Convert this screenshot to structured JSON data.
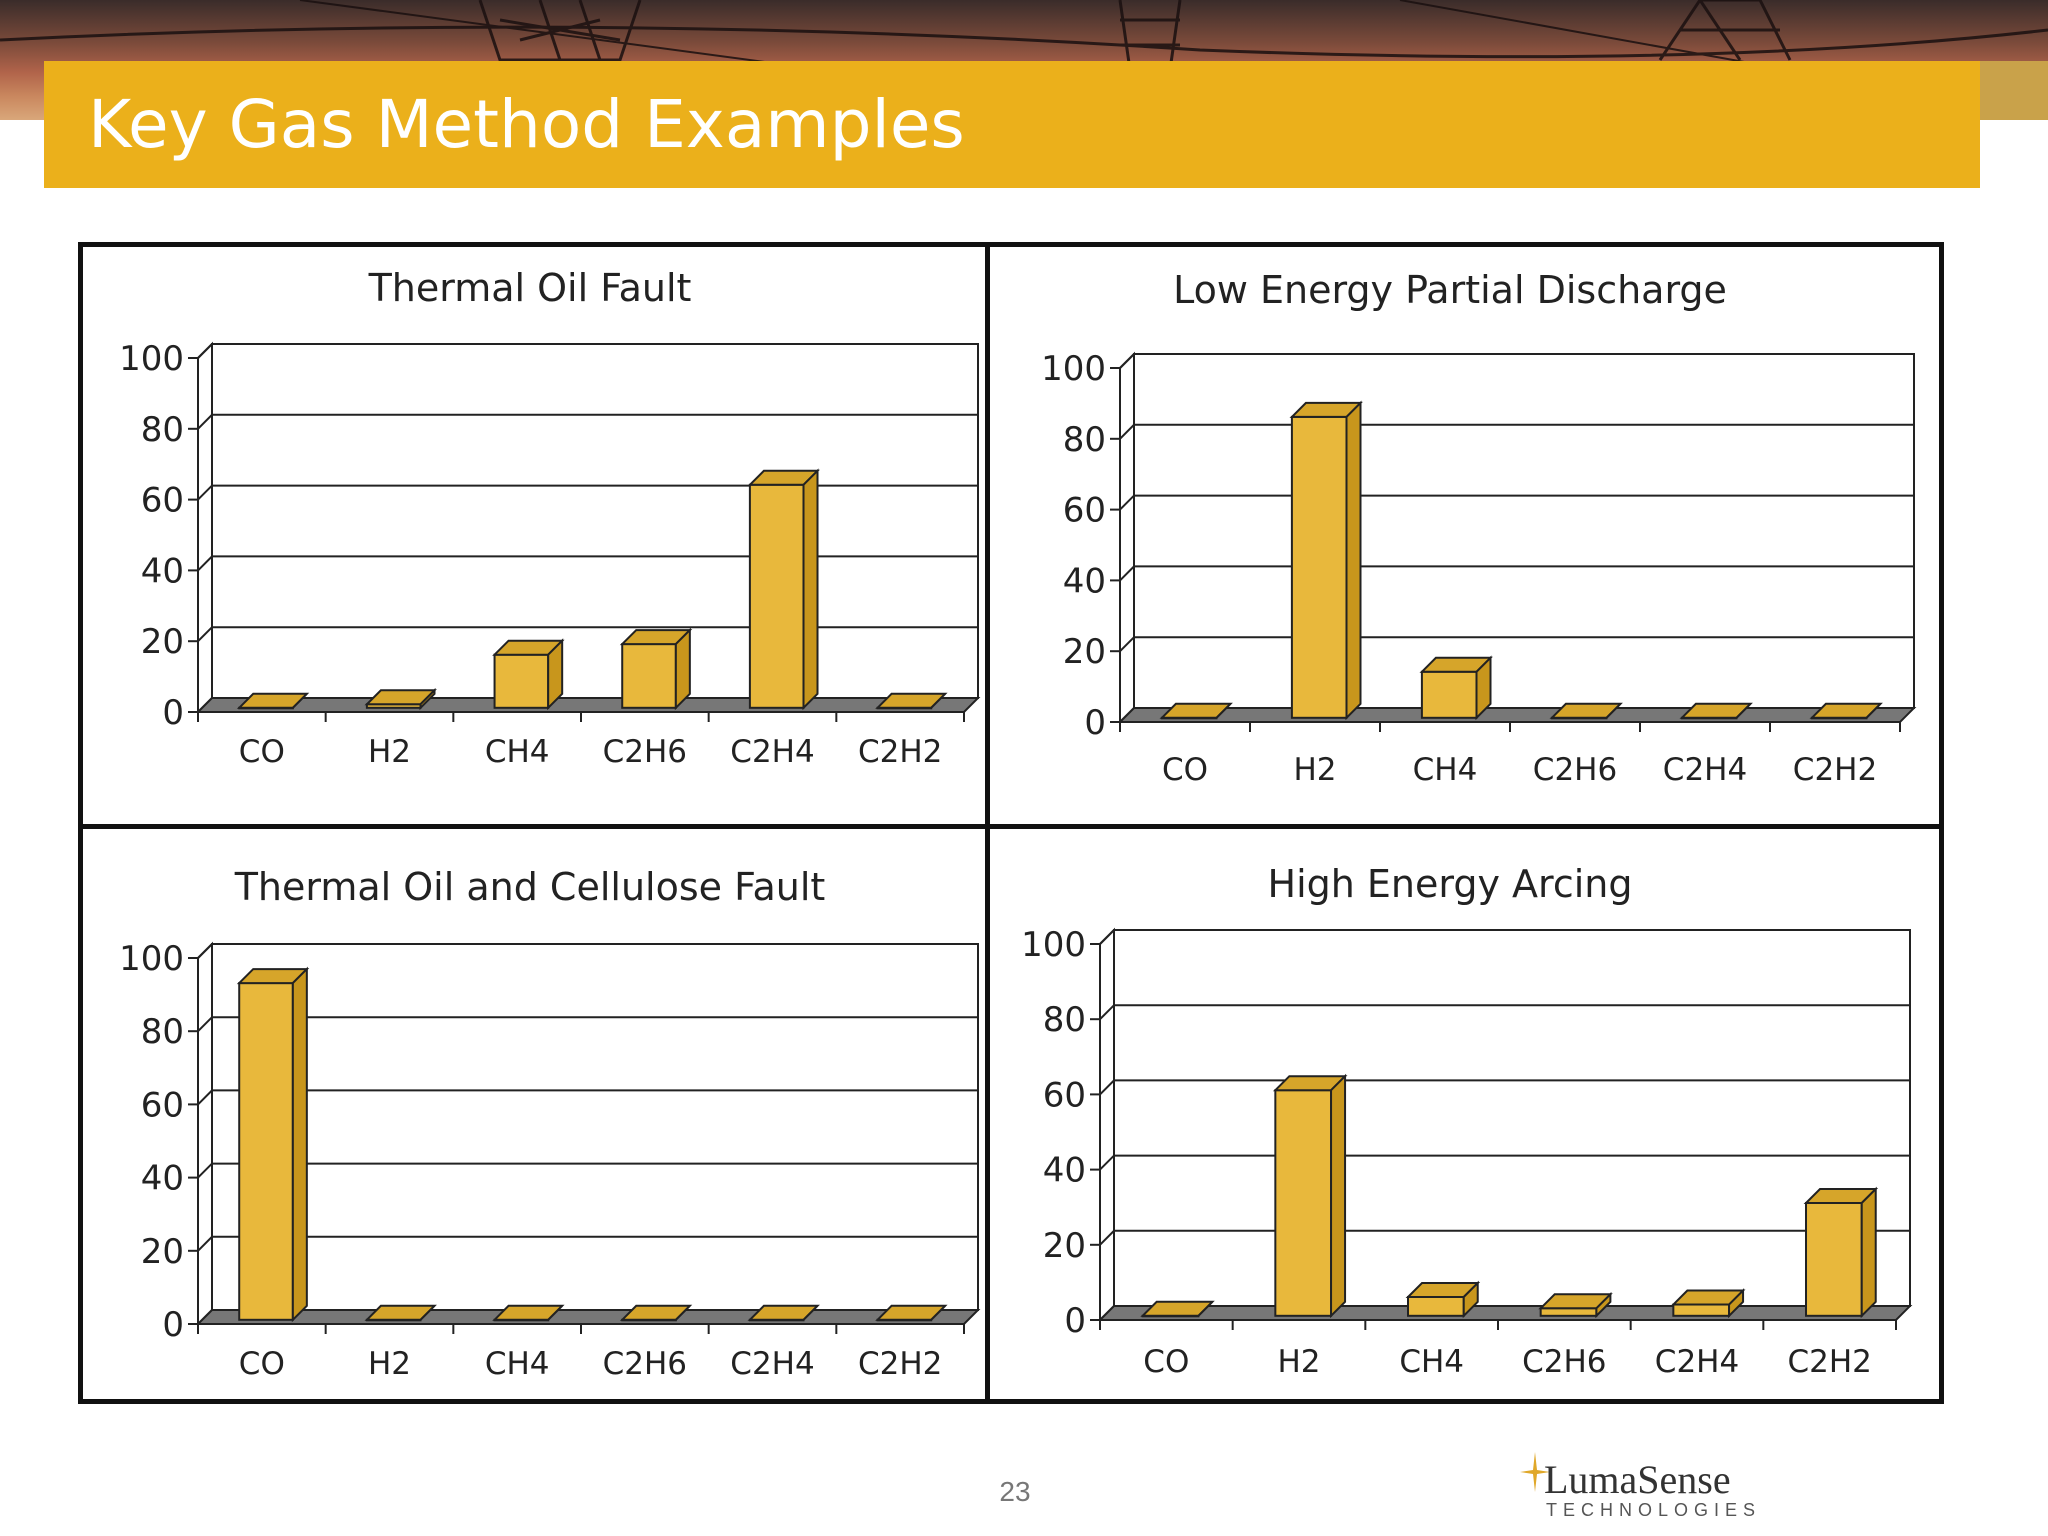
{
  "slide": {
    "title": "Key Gas Method Examples",
    "page_number": "23",
    "logo": {
      "name": "LumaSense",
      "subtitle": "TECHNOLOGIES"
    },
    "colors": {
      "title_bar": "#ebb01b",
      "bar_face": "#e8b83c",
      "bar_side": "#c8961c",
      "bar_top": "#d6a52a",
      "floor": "#777777"
    }
  },
  "chart_data": [
    {
      "type": "bar",
      "title": "Thermal Oil Fault",
      "categories": [
        "CO",
        "H2",
        "CH4",
        "C2H6",
        "C2H4",
        "C2H2"
      ],
      "values": [
        0,
        1,
        15,
        18,
        63,
        0
      ],
      "ylim": [
        0,
        100
      ],
      "yticks": [
        "0",
        "20",
        "40",
        "60",
        "80",
        "100"
      ],
      "grid": true
    },
    {
      "type": "bar",
      "title": "Low Energy Partial Discharge",
      "categories": [
        "CO",
        "H2",
        "CH4",
        "C2H6",
        "C2H4",
        "C2H2"
      ],
      "values": [
        0,
        85,
        13,
        0,
        0,
        0
      ],
      "ylim": [
        0,
        100
      ],
      "yticks": [
        "0",
        "20",
        "40",
        "60",
        "80",
        "100"
      ],
      "grid": true
    },
    {
      "type": "bar",
      "title": "Thermal Oil and Cellulose Fault",
      "categories": [
        "CO",
        "H2",
        "CH4",
        "C2H6",
        "C2H4",
        "C2H2"
      ],
      "values": [
        92,
        0,
        0,
        0,
        0,
        0
      ],
      "ylim": [
        0,
        100
      ],
      "yticks": [
        "0",
        "20",
        "40",
        "60",
        "80",
        "100"
      ],
      "grid": true
    },
    {
      "type": "bar",
      "title": "High Energy Arcing",
      "categories": [
        "CO",
        "H2",
        "CH4",
        "C2H6",
        "C2H4",
        "C2H2"
      ],
      "values": [
        0,
        60,
        5,
        2,
        3,
        30
      ],
      "ylim": [
        0,
        100
      ],
      "yticks": [
        "0",
        "20",
        "40",
        "60",
        "80",
        "100"
      ],
      "grid": true
    }
  ]
}
